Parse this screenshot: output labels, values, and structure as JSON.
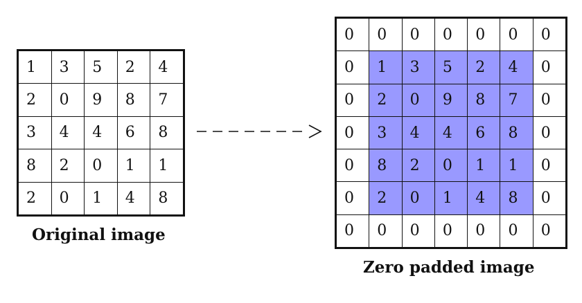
{
  "original": {
    "caption": "Original image",
    "rows": [
      [
        "1",
        "3",
        "5",
        "2",
        "4"
      ],
      [
        "2",
        "0",
        "9",
        "8",
        "7"
      ],
      [
        "3",
        "4",
        "4",
        "6",
        "8"
      ],
      [
        "8",
        "2",
        "0",
        "1",
        "1"
      ],
      [
        "2",
        "0",
        "1",
        "4",
        "8"
      ]
    ]
  },
  "padded": {
    "caption": "Zero padded image",
    "rows": [
      [
        "0",
        "0",
        "0",
        "0",
        "0",
        "0",
        "0"
      ],
      [
        "0",
        "1",
        "3",
        "5",
        "2",
        "4",
        "0"
      ],
      [
        "0",
        "2",
        "0",
        "9",
        "8",
        "7",
        "0"
      ],
      [
        "0",
        "3",
        "4",
        "4",
        "6",
        "8",
        "0"
      ],
      [
        "0",
        "8",
        "2",
        "0",
        "1",
        "1",
        "0"
      ],
      [
        "0",
        "2",
        "0",
        "1",
        "4",
        "8",
        "0"
      ],
      [
        "0",
        "0",
        "0",
        "0",
        "0",
        "0",
        "0"
      ]
    ],
    "highlight_color": "#9999ff"
  },
  "arrow": {
    "style": "dashed",
    "color": "#111111"
  }
}
